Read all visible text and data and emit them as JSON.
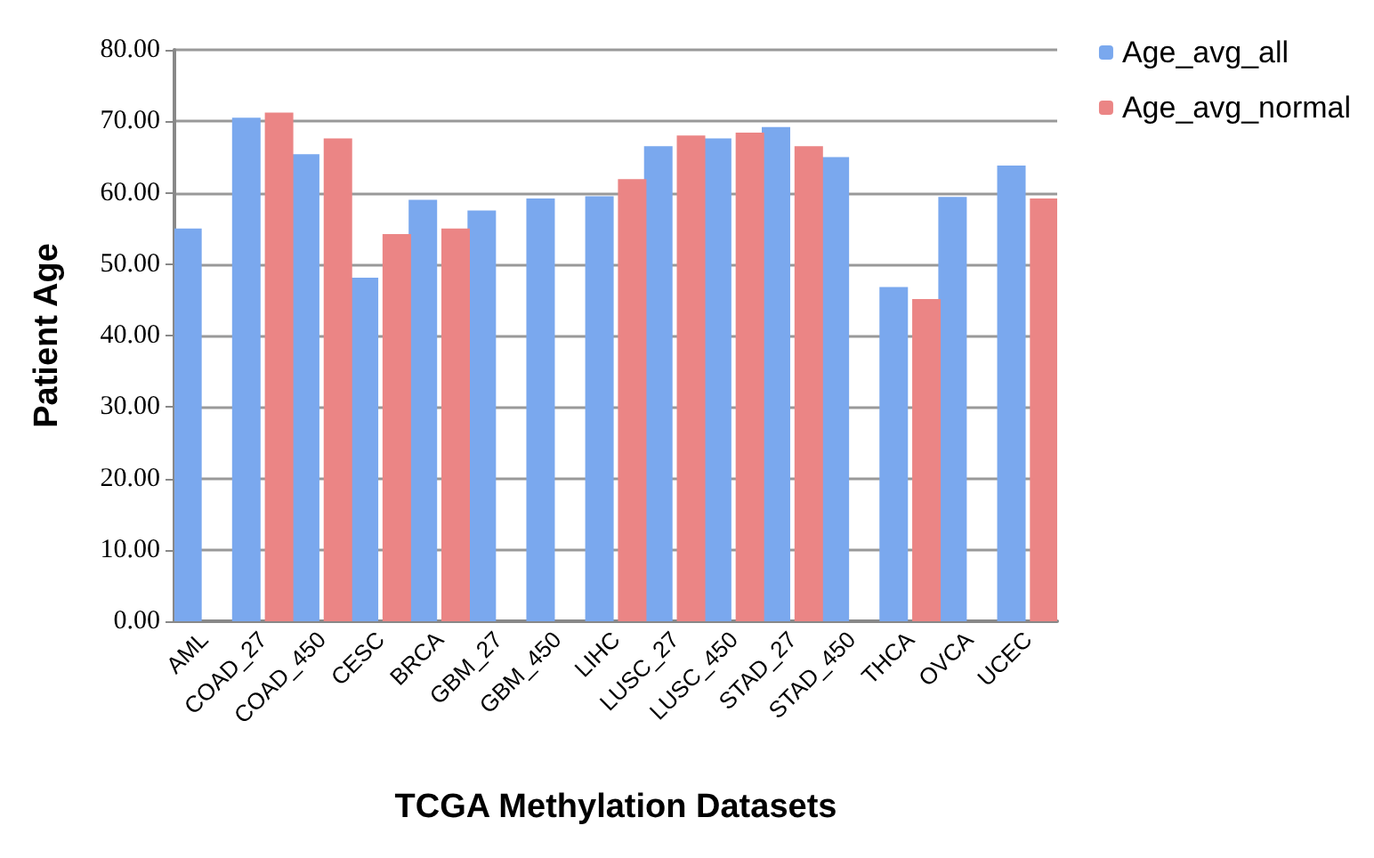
{
  "chart_data": {
    "type": "bar",
    "xlabel": "TCGA Methylation Datasets",
    "ylabel": "Patient Age",
    "categories": [
      "AML",
      "COAD_27",
      "COAD_450",
      "CESC",
      "BRCA",
      "GBM_27",
      "GBM_450",
      "LIHC",
      "LUSC_27",
      "LUSC_450",
      "STAD_27",
      "STAD_450",
      "THCA",
      "OVCA",
      "UCEC"
    ],
    "series": [
      {
        "name": "Age_avg_all",
        "color": "#7aa8ee",
        "values": [
          55,
          70.5,
          65.4,
          48.1,
          59,
          57.5,
          59.2,
          59.5,
          66.5,
          67.6,
          69.2,
          65,
          46.8,
          59.4,
          63.8
        ]
      },
      {
        "name": "Age_avg_normal",
        "color": "#eb8585",
        "values": [
          null,
          71.2,
          67.6,
          54.2,
          55,
          null,
          null,
          61.9,
          68,
          68.4,
          66.5,
          null,
          45.1,
          null,
          59.2
        ]
      }
    ],
    "ylim": [
      0,
      80
    ],
    "yticks": [
      {
        "value": 0,
        "label": "0.00"
      },
      {
        "value": 10,
        "label": "10.00"
      },
      {
        "value": 20,
        "label": "20.00"
      },
      {
        "value": 30,
        "label": "30.00"
      },
      {
        "value": 40,
        "label": "40.00"
      },
      {
        "value": 50,
        "label": "50.00"
      },
      {
        "value": 60,
        "label": "60.00"
      },
      {
        "value": 70,
        "label": "70.00"
      },
      {
        "value": 80,
        "label": "80.00"
      }
    ],
    "grid": "y",
    "legend": "top right"
  }
}
